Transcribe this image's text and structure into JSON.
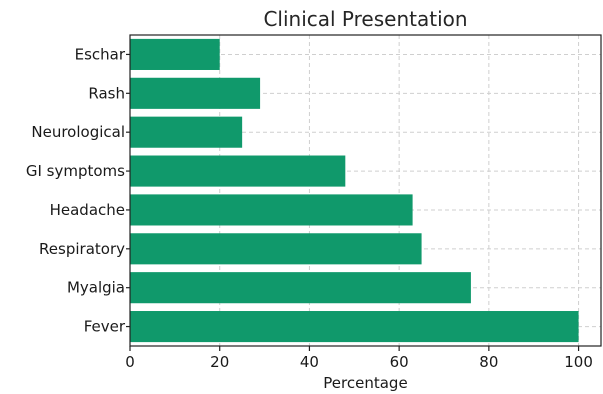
{
  "chart_data": {
    "type": "bar",
    "orientation": "horizontal",
    "title": "Clinical Presentation",
    "xlabel": "Percentage",
    "ylabel": "",
    "categories": [
      "Fever",
      "Myalgia",
      "Respiratory",
      "Headache",
      "GI symptoms",
      "Neurological",
      "Rash",
      "Eschar"
    ],
    "values": [
      100,
      76,
      65,
      63,
      48,
      25,
      29,
      20
    ],
    "xlim": [
      0,
      105
    ],
    "xticks": [
      0,
      20,
      40,
      60,
      80,
      100
    ],
    "grid": true,
    "bar_color": "#10996b"
  }
}
